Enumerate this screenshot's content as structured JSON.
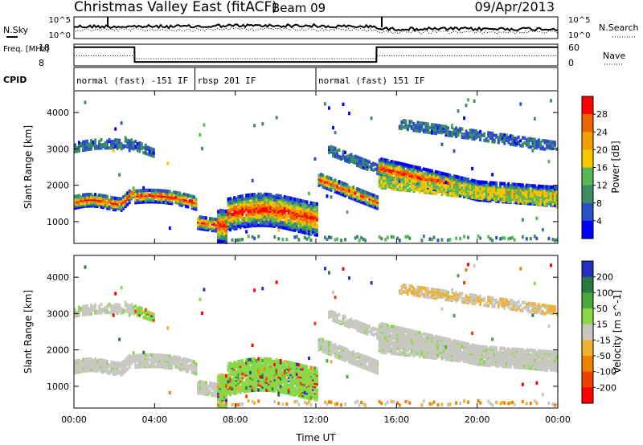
{
  "header": {
    "title": "Christmas Valley East (fitACF)",
    "beam": "Beam 09",
    "date": "09/Apr/2013"
  },
  "colors": {
    "power": [
      "#0000ff",
      "#2a4fc8",
      "#3c8c64",
      "#58b858",
      "#f5c800",
      "#f0a000",
      "#f06400",
      "#ff0000"
    ],
    "velocity": [
      "#2030c0",
      "#2a7a40",
      "#4aa83a",
      "#88d84a",
      "#c8c8c0",
      "#f0b030",
      "#f08000",
      "#f04000",
      "#ff0000"
    ],
    "ground_scatter": "#c8c8c0"
  },
  "chart_data": [
    {
      "type": "line",
      "panel": "noise",
      "ylabel_left": "N.Sky",
      "ylabel_right": "N.Search",
      "left_ticks": [
        "10^5",
        "10^0"
      ],
      "right_ticks": [
        "10^5",
        "10^0"
      ]
    },
    {
      "type": "line",
      "panel": "frequency",
      "ylabel_left": "Freq. [MHz]",
      "ylabel_right": "Nave",
      "left_ticks": [
        "18",
        "8"
      ],
      "right_ticks": [
        "60",
        "0"
      ],
      "freq_x_hours": [
        0,
        3,
        3.01,
        15,
        15.01,
        24
      ],
      "freq_mhz": [
        16.6,
        16.6,
        9.8,
        9.8,
        16.6,
        16.6
      ],
      "nave_x_hours": [
        0,
        3,
        3.01,
        15,
        15.01,
        24
      ],
      "nave": [
        28,
        28,
        20,
        20,
        28,
        28
      ]
    },
    {
      "type": "table",
      "panel": "cpid",
      "label": "CPID",
      "segments": [
        {
          "start": 0,
          "end": 6,
          "label": "normal (fast) -151 IF"
        },
        {
          "start": 6,
          "end": 12,
          "label": "rbsp 201 IF"
        },
        {
          "start": 12,
          "end": 24,
          "label": "normal (fast) 151 IF"
        }
      ]
    },
    {
      "type": "heatmap",
      "panel": "power",
      "ylabel": "Slant Range [km]",
      "xlim": [
        0,
        24
      ],
      "ylim": [
        400,
        4600
      ],
      "yticks": [
        1000,
        2000,
        3000,
        4000
      ],
      "colorbar_label": "Power [dB]",
      "colorbar_ticks": [
        4,
        8,
        12,
        16,
        20,
        24,
        28
      ],
      "colorbar_range": [
        0,
        32
      ]
    },
    {
      "type": "heatmap",
      "panel": "velocity",
      "ylabel": "Slant Range [km]",
      "xlabel": "Time UT",
      "xlim": [
        0,
        24
      ],
      "ylim": [
        400,
        4600
      ],
      "yticks": [
        1000,
        2000,
        3000,
        4000
      ],
      "xticks": [
        "00:00",
        "04:00",
        "08:00",
        "12:00",
        "16:00",
        "20:00",
        "00:00"
      ],
      "colorbar_label": "Velocity [m s^-1]",
      "colorbar_ticks": [
        "200",
        "100",
        "50",
        "15",
        "-15",
        "-50",
        "-100",
        "-200"
      ]
    }
  ]
}
